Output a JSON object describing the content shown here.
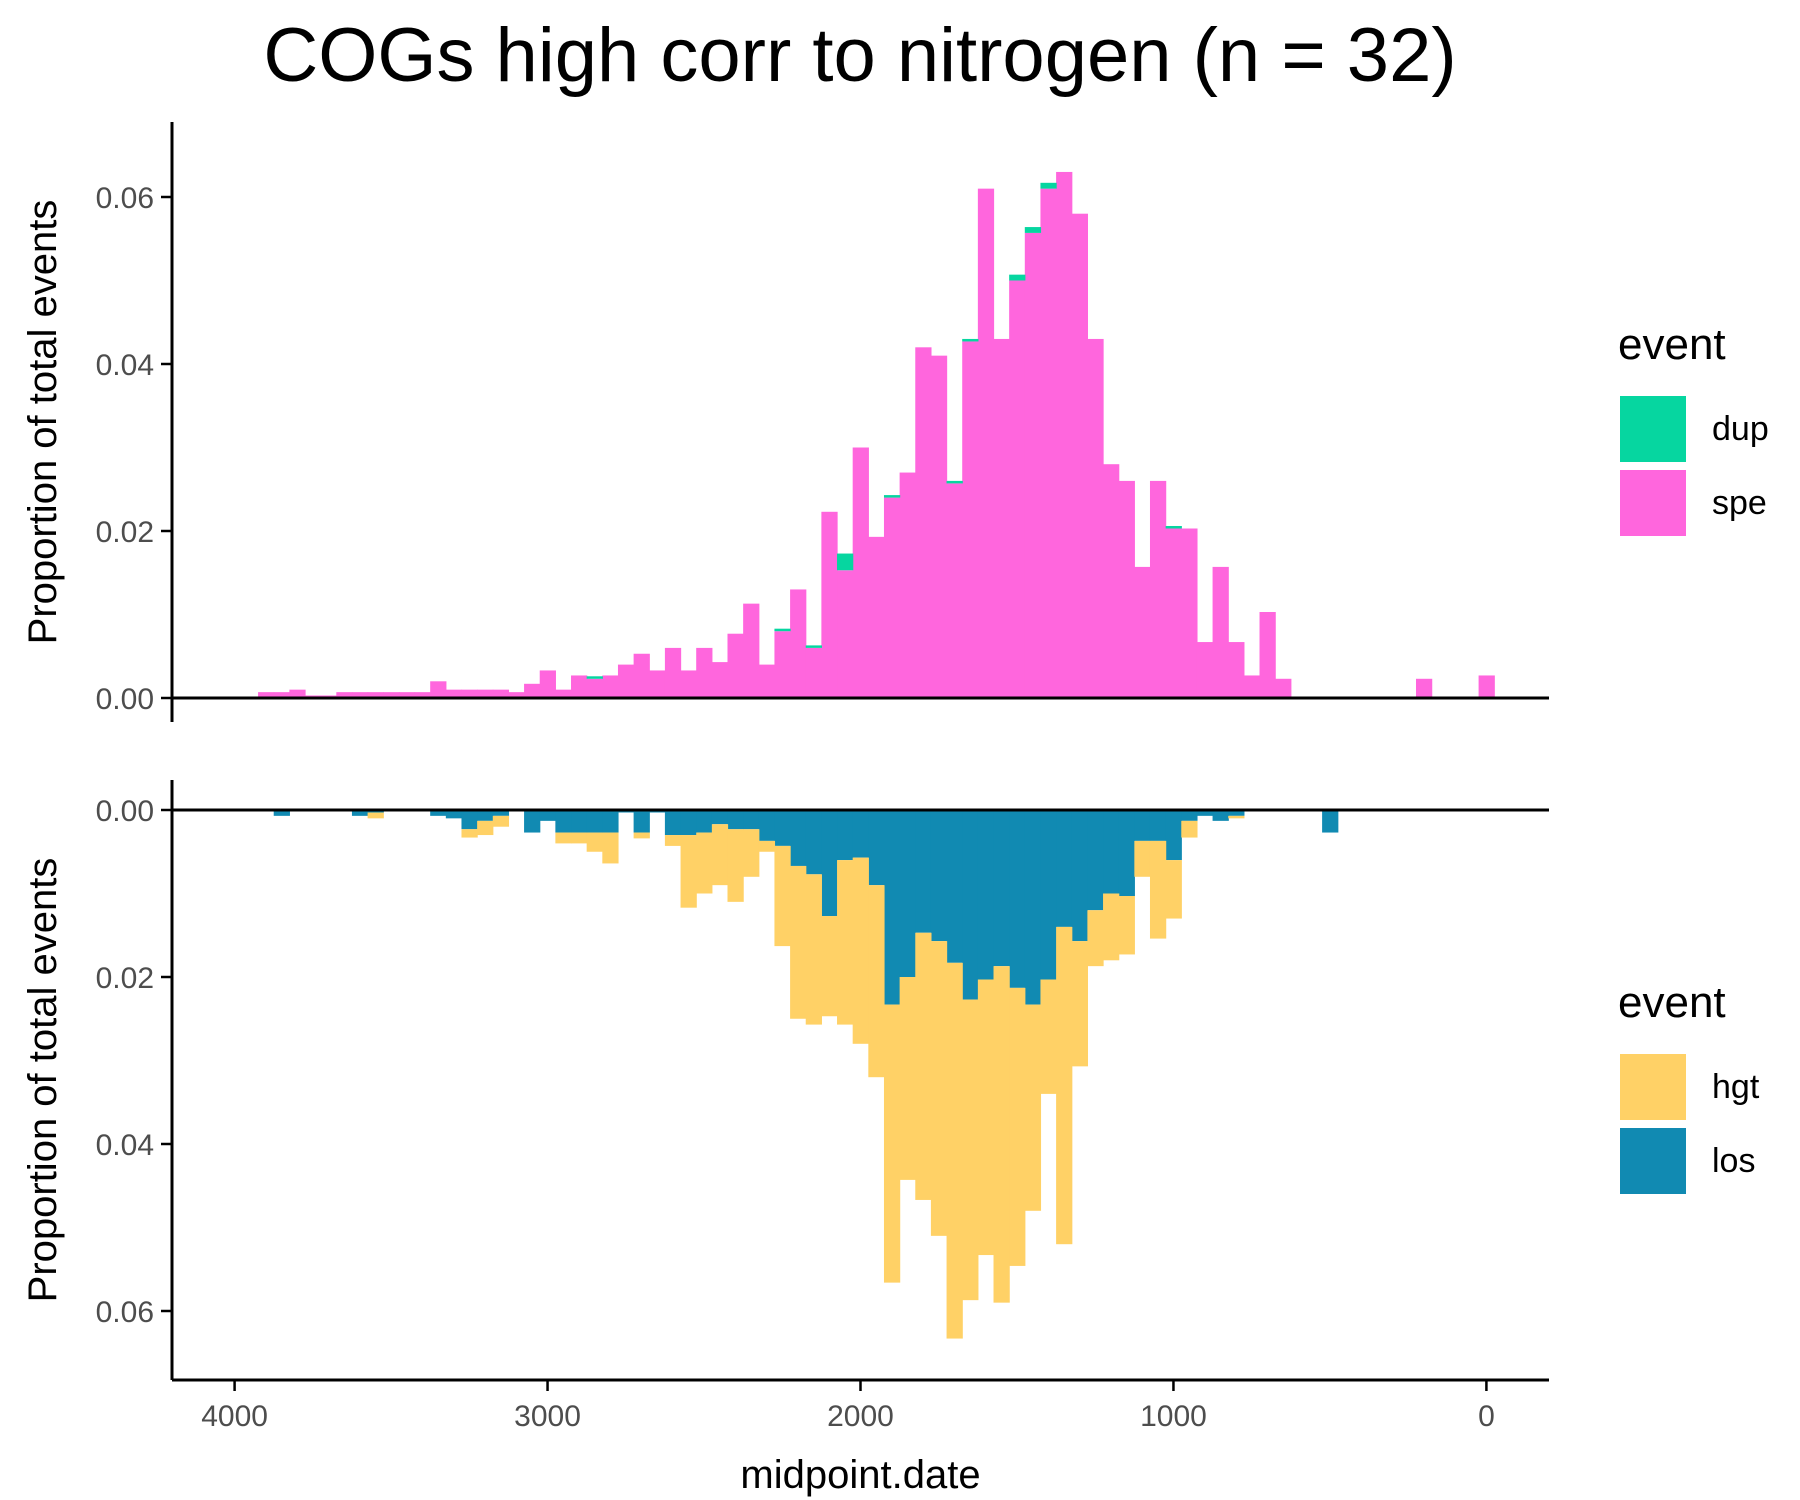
{
  "figure": {
    "title": "COGs high corr to nitrogen (n = 32)",
    "xlabel": "midpoint.date"
  },
  "colors": {
    "dup": "#06D6A0",
    "spe": "#FF66DD",
    "hgt": "#FFD166",
    "los": "#118AB2",
    "axis": "#000000",
    "tick_text": "#4D4D4D"
  },
  "legends": [
    {
      "title": "event",
      "items": [
        {
          "label": "dup",
          "color": "#06D6A0"
        },
        {
          "label": "spe",
          "color": "#FF66DD"
        }
      ]
    },
    {
      "title": "event",
      "items": [
        {
          "label": "hgt",
          "color": "#FFD166"
        },
        {
          "label": "los",
          "color": "#118AB2"
        }
      ]
    }
  ],
  "chart_data": [
    {
      "type": "bar",
      "stacked": true,
      "ylabel": "Proportion of total events",
      "xlim": [
        4200,
        -200
      ],
      "ylim": [
        0,
        0.068
      ],
      "x_reversed": true,
      "yticks": [
        0.0,
        0.02,
        0.04,
        0.06
      ],
      "ytick_labels": [
        "0.00",
        "0.02",
        "0.04",
        "0.06"
      ],
      "bin_width": 50,
      "grid": false,
      "legend_position": "right",
      "x": [
        3900,
        3850,
        3800,
        3750,
        3700,
        3650,
        3600,
        3550,
        3500,
        3450,
        3400,
        3350,
        3300,
        3250,
        3200,
        3150,
        3100,
        3050,
        3000,
        2950,
        2900,
        2850,
        2800,
        2750,
        2700,
        2650,
        2600,
        2550,
        2500,
        2450,
        2400,
        2350,
        2300,
        2250,
        2200,
        2150,
        2100,
        2050,
        2000,
        1950,
        1900,
        1850,
        1800,
        1750,
        1700,
        1650,
        1600,
        1550,
        1500,
        1450,
        1400,
        1350,
        1300,
        1250,
        1200,
        1150,
        1100,
        1050,
        1000,
        950,
        900,
        850,
        800,
        750,
        700,
        650,
        200,
        0
      ],
      "series": [
        {
          "name": "spe",
          "values": [
            0.0007,
            0.0007,
            0.001,
            0.0003,
            0.0003,
            0.0007,
            0.0007,
            0.0007,
            0.0007,
            0.0007,
            0.0007,
            0.002,
            0.001,
            0.001,
            0.001,
            0.001,
            0.0007,
            0.0017,
            0.0033,
            0.001,
            0.0027,
            0.0023,
            0.0027,
            0.004,
            0.0053,
            0.0033,
            0.006,
            0.0033,
            0.006,
            0.0043,
            0.0077,
            0.0113,
            0.004,
            0.008,
            0.013,
            0.006,
            0.0223,
            0.0153,
            0.03,
            0.0193,
            0.024,
            0.027,
            0.042,
            0.041,
            0.0257,
            0.0427,
            0.061,
            0.043,
            0.05,
            0.0557,
            0.061,
            0.063,
            0.058,
            0.043,
            0.028,
            0.026,
            0.0157,
            0.026,
            0.0203,
            0.0203,
            0.0067,
            0.0157,
            0.0067,
            0.0027,
            0.0103,
            0.0023,
            0.0023,
            0.0027
          ]
        },
        {
          "name": "dup",
          "values": [
            0,
            0,
            0,
            0,
            0,
            0,
            0,
            0,
            0,
            0,
            0,
            0,
            0,
            0,
            0,
            0,
            0,
            0,
            0,
            0,
            0,
            0.0003,
            0,
            0,
            0,
            0,
            0,
            0,
            0,
            0,
            0,
            0,
            0,
            0.0003,
            0,
            0.0003,
            0,
            0.002,
            0,
            0,
            0.0003,
            0,
            0,
            0,
            0.0003,
            0.0003,
            0,
            0,
            0.0007,
            0.0007,
            0.0007,
            0,
            0,
            0,
            0,
            0,
            0,
            0,
            0.0003,
            0,
            0,
            0,
            0,
            0,
            0,
            0,
            0,
            0
          ]
        }
      ]
    },
    {
      "type": "bar",
      "stacked": true,
      "ylabel": "Proportion of total events",
      "xlim": [
        4200,
        -200
      ],
      "ylim": [
        0,
        0.068
      ],
      "y_reversed": true,
      "x_reversed": true,
      "yticks": [
        0.0,
        0.02,
        0.04,
        0.06
      ],
      "ytick_labels": [
        "0.00",
        "0.02",
        "0.04",
        "0.06"
      ],
      "xticks": [
        4000,
        3000,
        2000,
        1000,
        0
      ],
      "xtick_labels": [
        "4000",
        "3000",
        "2000",
        "1000",
        "0"
      ],
      "bin_width": 50,
      "grid": false,
      "legend_position": "right",
      "x": [
        3850,
        3600,
        3550,
        3350,
        3300,
        3250,
        3200,
        3150,
        3050,
        3000,
        2950,
        2900,
        2850,
        2800,
        2750,
        2700,
        2650,
        2600,
        2550,
        2500,
        2450,
        2400,
        2350,
        2300,
        2250,
        2200,
        2150,
        2100,
        2050,
        2000,
        1950,
        1900,
        1850,
        1800,
        1750,
        1700,
        1650,
        1600,
        1550,
        1500,
        1450,
        1400,
        1350,
        1300,
        1250,
        1200,
        1150,
        1100,
        1050,
        1000,
        950,
        900,
        850,
        800,
        500
      ],
      "series": [
        {
          "name": "los",
          "values": [
            0.0007,
            0.0007,
            0.0003,
            0.0007,
            0.001,
            0.0023,
            0.0013,
            0.0007,
            0.0027,
            0.0013,
            0.0027,
            0.0027,
            0.0027,
            0.0027,
            0.0003,
            0.0027,
            0.0003,
            0.003,
            0.003,
            0.0027,
            0.0017,
            0.0023,
            0.0023,
            0.0037,
            0.0043,
            0.0067,
            0.0077,
            0.0127,
            0.006,
            0.0057,
            0.009,
            0.0233,
            0.02,
            0.0147,
            0.0157,
            0.0183,
            0.0227,
            0.0203,
            0.0187,
            0.0213,
            0.0233,
            0.0203,
            0.014,
            0.0157,
            0.012,
            0.01,
            0.0103,
            0.0037,
            0.0037,
            0.006,
            0.0013,
            0.0007,
            0.0013,
            0.0007,
            0.0027
          ]
        },
        {
          "name": "hgt",
          "values": [
            0,
            0,
            0.0007,
            0,
            0,
            0.001,
            0.0017,
            0.0013,
            0,
            0,
            0.0013,
            0.0013,
            0.0023,
            0.0037,
            0,
            0.0007,
            0,
            0.0013,
            0.0087,
            0.0073,
            0.0073,
            0.0087,
            0.0057,
            0.0013,
            0.012,
            0.0183,
            0.018,
            0.012,
            0.0197,
            0.0223,
            0.023,
            0.0333,
            0.0243,
            0.032,
            0.0353,
            0.045,
            0.036,
            0.033,
            0.0403,
            0.0333,
            0.0247,
            0.0137,
            0.038,
            0.015,
            0.0067,
            0.008,
            0.007,
            0.0043,
            0.0117,
            0.007,
            0.002,
            0,
            0,
            0.0003,
            0
          ]
        }
      ]
    }
  ]
}
